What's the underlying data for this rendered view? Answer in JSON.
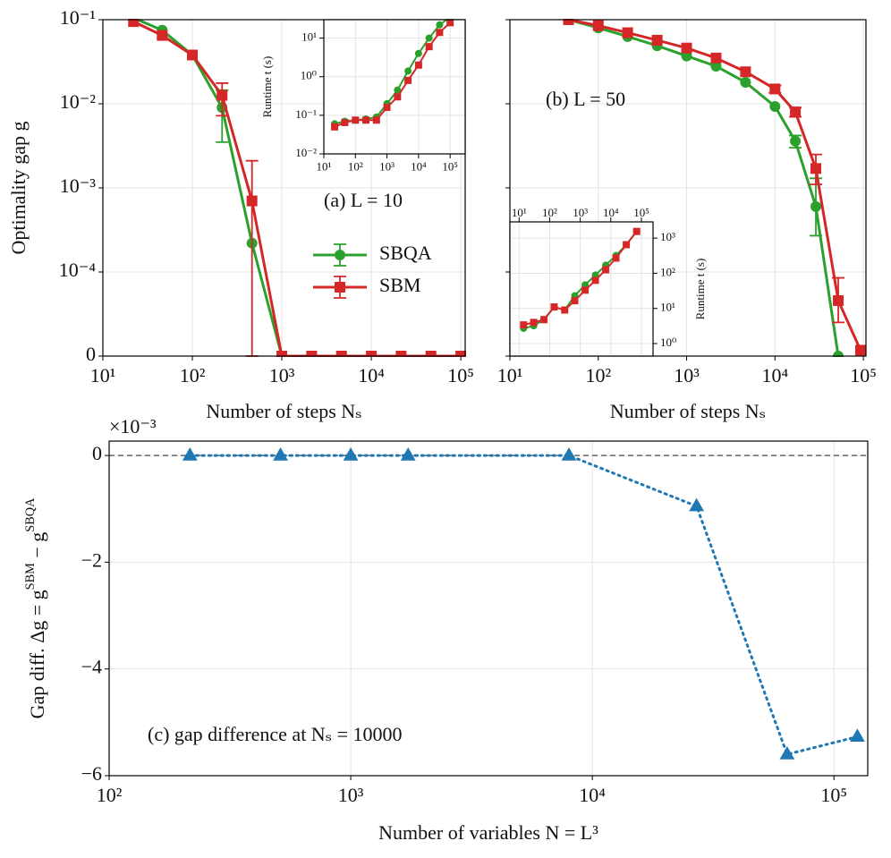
{
  "chart_data": [
    {
      "type": "line",
      "xscale": "log",
      "yscale": "symlog",
      "linthresh": 0.0001,
      "xlim": [
        10,
        112000
      ],
      "ylim": [
        0,
        0.1
      ],
      "xticks": [
        {
          "value": 10,
          "label": "10¹"
        },
        {
          "value": 100,
          "label": "10²"
        },
        {
          "value": 1000,
          "label": "10³"
        },
        {
          "value": 10000,
          "label": "10⁴"
        },
        {
          "value": 100000,
          "label": "10⁵"
        }
      ],
      "yticks": [
        0,
        {
          "value": 0.0001,
          "label": "10⁻⁴"
        },
        {
          "value": 0.001,
          "label": "10⁻³"
        },
        {
          "value": 0.01,
          "label": "10⁻²"
        },
        {
          "value": 0.1,
          "label": "10⁻¹"
        }
      ],
      "xlabel": "Number of steps Nₛ",
      "ylabel": "Optimality gap g",
      "annotation": "(a) L = 10",
      "grid": true,
      "legend": "center right",
      "x": [
        22,
        46,
        100,
        215,
        464,
        1000,
        2154,
        4642,
        10000,
        21544,
        46416,
        100000
      ],
      "series": [
        {
          "name": "SBQA",
          "color": "#2ca02c",
          "marker": "circle",
          "values": [
            0.105,
            0.075,
            0.038,
            0.009,
            0.00022,
            0,
            0,
            0,
            0,
            0,
            0,
            0
          ],
          "err_low": [
            null,
            null,
            null,
            0.0055,
            null,
            null,
            null,
            null,
            null,
            null,
            null,
            null
          ],
          "err_high": [
            null,
            null,
            null,
            0.0055,
            null,
            null,
            null,
            null,
            null,
            null,
            null,
            null
          ]
        },
        {
          "name": "SBM",
          "color": "#d62728",
          "marker": "square",
          "values": [
            0.095,
            0.065,
            0.038,
            0.0126,
            0.0007,
            0,
            0,
            0,
            0,
            0,
            0,
            0
          ],
          "err_low": [
            null,
            null,
            null,
            0.0054,
            0.0007,
            null,
            null,
            null,
            null,
            null,
            null,
            null
          ],
          "err_high": [
            null,
            null,
            null,
            0.005,
            0.0014,
            null,
            null,
            null,
            null,
            null,
            null,
            null
          ]
        }
      ]
    },
    {
      "type": "line",
      "xscale": "log",
      "yscale": "log",
      "xlim": [
        10,
        300000
      ],
      "ylim": [
        0.01,
        30
      ],
      "xticks": [
        {
          "value": 10,
          "label": "10¹"
        },
        {
          "value": 100,
          "label": "10²"
        },
        {
          "value": 1000,
          "label": "10³"
        },
        {
          "value": 10000,
          "label": "10⁴"
        },
        {
          "value": 100000,
          "label": "10⁵"
        }
      ],
      "yticks": [
        {
          "value": 0.01,
          "label": "10⁻²"
        },
        {
          "value": 0.1,
          "label": "10⁻¹"
        },
        {
          "value": 1,
          "label": "10⁰"
        },
        {
          "value": 10,
          "label": "10¹"
        }
      ],
      "ylabel": "Runtime t (s)",
      "grid": true,
      "x": [
        22,
        46,
        100,
        215,
        464,
        1000,
        2154,
        4642,
        10000,
        21544,
        46416,
        100000
      ],
      "series": [
        {
          "color": "#2ca02c",
          "marker": "circle",
          "values": [
            0.06,
            0.07,
            0.075,
            0.08,
            0.09,
            0.2,
            0.45,
            1.4,
            4,
            10,
            22,
            35
          ]
        },
        {
          "color": "#d62728",
          "marker": "square",
          "values": [
            0.05,
            0.065,
            0.075,
            0.075,
            0.075,
            0.16,
            0.3,
            0.8,
            2,
            6,
            14,
            25
          ]
        }
      ]
    },
    {
      "type": "line",
      "xscale": "log",
      "yscale": "symlog",
      "linthresh": 0.0001,
      "xlim": [
        10,
        107000
      ],
      "ylim": [
        0,
        0.1
      ],
      "xticks": [
        {
          "value": 10,
          "label": "10¹"
        },
        {
          "value": 100,
          "label": "10²"
        },
        {
          "value": 1000,
          "label": "10³"
        },
        {
          "value": 10000,
          "label": "10⁴"
        },
        {
          "value": 100000,
          "label": "10⁵"
        }
      ],
      "yticks": [
        0,
        0.0001,
        0.001,
        0.01,
        0.1
      ],
      "xlabel": "Number of steps Nₛ",
      "annotation": "(b) L = 50",
      "grid": true,
      "x": [
        46,
        100,
        215,
        464,
        1000,
        2154,
        4642,
        10000,
        17000,
        29000,
        52000,
        93000
      ],
      "series": [
        {
          "color": "#2ca02c",
          "marker": "circle",
          "values": [
            0.1,
            0.08,
            0.063,
            0.049,
            0.037,
            0.028,
            0.018,
            0.0093,
            0.0036,
            0.0006,
            0,
            null
          ],
          "err_low": [
            null,
            null,
            null,
            null,
            null,
            null,
            null,
            null,
            0.0006,
            0.00033,
            null,
            null
          ],
          "err_high": [
            null,
            null,
            null,
            null,
            null,
            null,
            null,
            null,
            0.0006,
            0.0007,
            null,
            null
          ]
        },
        {
          "color": "#d62728",
          "marker": "square",
          "values": [
            0.1,
            0.085,
            0.07,
            0.057,
            0.046,
            0.035,
            0.024,
            0.015,
            0.008,
            0.0017,
            6.6e-05,
            7e-06
          ],
          "err_low": [
            null,
            null,
            null,
            null,
            null,
            null,
            null,
            0.0015,
            0.001,
            0.0006,
            2.6e-05,
            null
          ],
          "err_high": [
            null,
            null,
            null,
            null,
            null,
            null,
            null,
            0.0015,
            0.001,
            0.0008,
            2.7e-05,
            null
          ]
        }
      ]
    },
    {
      "type": "line",
      "xscale": "log",
      "yscale": "log",
      "xlim": [
        5,
        240000
      ],
      "ylim": [
        0.44,
        2900
      ],
      "xticks": [
        {
          "value": 10,
          "label": "10¹"
        },
        {
          "value": 100,
          "label": "10²"
        },
        {
          "value": 1000,
          "label": "10³"
        },
        {
          "value": 10000,
          "label": "10⁴"
        },
        {
          "value": 100000,
          "label": "10⁵"
        }
      ],
      "yticks": [
        {
          "value": 1,
          "label": "10⁰"
        },
        {
          "value": 10,
          "label": "10¹"
        },
        {
          "value": 100,
          "label": "10²"
        },
        {
          "value": 1000,
          "label": "10³"
        }
      ],
      "ylabel": "Runtime t (s)",
      "grid": true,
      "x": [
        14,
        30,
        65,
        140,
        310,
        660,
        1440,
        3130,
        6800,
        14700,
        32000,
        70000
      ],
      "series": [
        {
          "color": "#2ca02c",
          "marker": "circle",
          "values": [
            2.7,
            3.2,
            4.8,
            11,
            9,
            23,
            47,
            89,
            170,
            320,
            650,
            1550
          ]
        },
        {
          "color": "#d62728",
          "marker": "square",
          "values": [
            3.4,
            4,
            4.8,
            11,
            9,
            16.5,
            33,
            63,
            126,
            270,
            650,
            1550
          ]
        }
      ]
    },
    {
      "type": "line",
      "xscale": "linear-y",
      "yscale": "linear",
      "xlim": [
        100,
        138000
      ],
      "ylim": [
        -6,
        0.27
      ],
      "xticks": [
        {
          "value": 100,
          "label": "10²"
        },
        {
          "value": 1000,
          "label": "10³"
        },
        {
          "value": 10000,
          "label": "10⁴"
        },
        {
          "value": 100000,
          "label": "10⁵"
        }
      ],
      "yticks": [
        {
          "value": -6,
          "label": "−6"
        },
        {
          "value": -4,
          "label": "−4"
        },
        {
          "value": -2,
          "label": "−2"
        },
        0
      ],
      "offset_label": "×10⁻³",
      "xlabel": "Number of variables N = L³",
      "ylabel": [
        "Gap diff. Δg = g",
        "SBM",
        " − g",
        "SBQA"
      ],
      "annotation": "(c) gap difference at Nₛ = 10000",
      "grid": true,
      "hline": 0,
      "x": [
        216,
        512,
        1000,
        1728,
        8000,
        27000,
        64000,
        125000
      ],
      "series": [
        {
          "color": "#1f77b4",
          "marker": "triangle",
          "linestyle": "dotted",
          "values": [
            0,
            0,
            0,
            0,
            0,
            -0.95,
            -5.6,
            -5.27
          ]
        }
      ]
    }
  ]
}
